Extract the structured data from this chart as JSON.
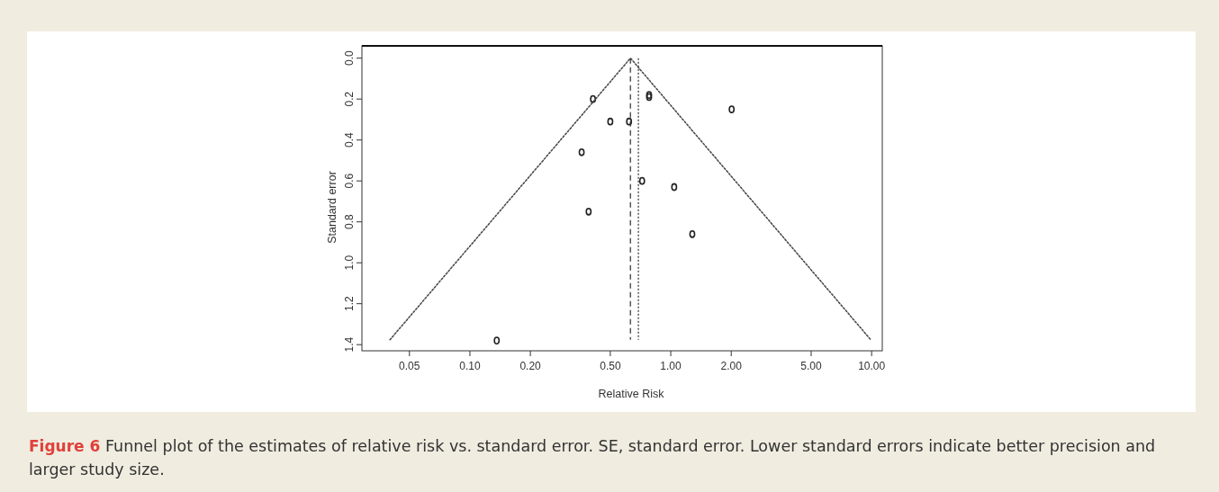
{
  "chart_data": {
    "type": "scatter",
    "title": "Figure 6",
    "annotations": [
      "Funnel plot of the estimates of relative risk vs. standard error. SE, standard error. Lower standard errors indicate better precision and larger study size."
    ],
    "xlabel": "Relative Risk",
    "ylabel": "Standard error",
    "log": "x",
    "xlim": [
      0.029,
      11.3
    ],
    "xticks": [
      {
        "value": 0.05,
        "label": "0.05"
      },
      {
        "value": 0.1,
        "label": "0.10"
      },
      {
        "value": 0.2,
        "label": "0.20"
      },
      {
        "value": 0.5,
        "label": "0.50"
      },
      {
        "value": 1,
        "label": "1.00"
      },
      {
        "value": 2,
        "label": "2.00"
      },
      {
        "value": 5,
        "label": "5.00"
      },
      {
        "value": 10,
        "label": "10.00"
      }
    ],
    "ylim": [
      1.43,
      -0.06
    ],
    "yticks": [
      {
        "value": 0,
        "label": "0.0"
      },
      0.2,
      0.4,
      0.6,
      0.8,
      {
        "value": 1,
        "label": "1.0"
      },
      1.2,
      1.4
    ],
    "grid": false,
    "series": [
      {
        "marker": "circle",
        "color": "#222222",
        "x": [
          0.41,
          0.78,
          0.78,
          2.01,
          0.5,
          0.62,
          0.36,
          0.72,
          1.04,
          0.39,
          1.28,
          0.136
        ],
        "values": [
          0.2,
          0.18,
          0.19,
          0.25,
          0.31,
          0.31,
          0.46,
          0.6,
          0.63,
          0.75,
          0.86,
          1.38
        ]
      },
      {
        "type": "line",
        "color": "#444444",
        "line_style": "dotted",
        "x": [
          0.04,
          0.63,
          9.9
        ],
        "values": [
          1.376,
          0,
          1.376
        ]
      }
    ],
    "ref_lines": [
      {
        "axis": "x",
        "value": 0.63,
        "line_style": "dashed",
        "color": "#555555"
      },
      {
        "axis": "x",
        "value": 0.69,
        "line_style": "dotted",
        "color": "#555555"
      }
    ]
  }
}
